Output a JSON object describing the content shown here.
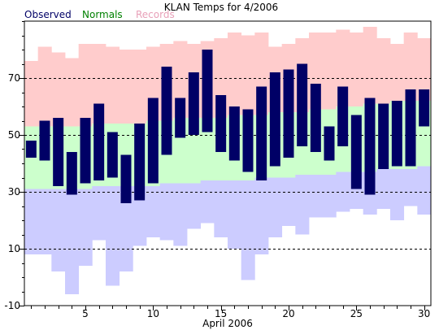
{
  "chart_data": {
    "type": "bar",
    "title": "KLAN Temps for 4/2006",
    "xlabel": "April 2006",
    "ylabel": "",
    "ylim": [
      -10,
      90
    ],
    "xlim": [
      0.5,
      30.5
    ],
    "yticks": [
      -10,
      10,
      30,
      50,
      70
    ],
    "xticks": [
      5,
      10,
      15,
      20,
      25,
      30
    ],
    "grid": "dashed horizontal at major ticks",
    "legend": {
      "placement": "top-left",
      "entries": [
        {
          "label": "Observed",
          "color": "#000066"
        },
        {
          "label": "Normals",
          "color": "#008000"
        },
        {
          "label": "Records",
          "color": "#E8A0B8"
        }
      ]
    },
    "colors": {
      "record_fill": "#FFCCCC",
      "normal_fill": "#CCFFCC",
      "low_record_fill": "#CCCCFF",
      "observed_fill": "#000066",
      "grid": "#000000"
    },
    "days": [
      1,
      2,
      3,
      4,
      5,
      6,
      7,
      8,
      9,
      10,
      11,
      12,
      13,
      14,
      15,
      16,
      17,
      18,
      19,
      20,
      21,
      22,
      23,
      24,
      25,
      26,
      27,
      28,
      29,
      30
    ],
    "series": [
      {
        "name": "Records",
        "role": "record_high",
        "values": [
          76,
          81,
          79,
          77,
          82,
          82,
          81,
          80,
          80,
          81,
          82,
          83,
          82,
          83,
          84,
          86,
          85,
          86,
          81,
          82,
          84,
          86,
          86,
          87,
          86,
          88,
          84,
          82,
          86,
          84
        ]
      },
      {
        "name": "Normals",
        "role": "normal_high",
        "values": [
          53,
          53,
          53,
          53,
          53,
          54,
          54,
          54,
          54,
          55,
          55,
          56,
          56,
          56,
          56,
          57,
          57,
          57,
          58,
          58,
          58,
          59,
          59,
          60,
          60,
          61,
          61,
          62,
          62,
          62
        ]
      },
      {
        "name": "Normals",
        "role": "normal_low",
        "values": [
          31,
          31,
          31,
          31,
          31,
          32,
          32,
          32,
          32,
          32,
          33,
          33,
          33,
          34,
          34,
          34,
          34,
          35,
          35,
          35,
          36,
          36,
          36,
          37,
          37,
          37,
          38,
          38,
          38,
          39
        ]
      },
      {
        "name": "Records",
        "role": "record_low",
        "values": [
          8,
          8,
          2,
          -6,
          4,
          13,
          -3,
          2,
          11,
          14,
          13,
          11,
          17,
          19,
          14,
          10,
          -1,
          8,
          14,
          18,
          15,
          21,
          21,
          23,
          24,
          22,
          24,
          20,
          25,
          22
        ]
      },
      {
        "name": "Observed",
        "role": "observed_high",
        "values": [
          48,
          55,
          56,
          44,
          56,
          61,
          51,
          43,
          54,
          63,
          74,
          63,
          72,
          80,
          64,
          60,
          59,
          67,
          72,
          73,
          75,
          68,
          53,
          67,
          57,
          63,
          61,
          62,
          66,
          66
        ]
      },
      {
        "name": "Observed",
        "role": "observed_low",
        "values": [
          42,
          41,
          32,
          29,
          33,
          34,
          35,
          26,
          27,
          33,
          43,
          49,
          50,
          51,
          44,
          41,
          37,
          34,
          39,
          42,
          46,
          44,
          41,
          46,
          31,
          29,
          38,
          39,
          39,
          53
        ]
      }
    ]
  }
}
